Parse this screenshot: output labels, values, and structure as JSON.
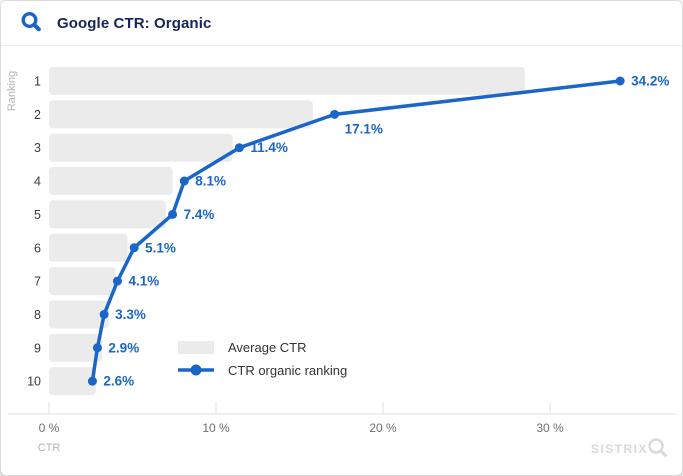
{
  "header": {
    "title": "Google CTR: Organic"
  },
  "colors": {
    "accent_blue": "#1a66c8",
    "title_navy": "#16255b",
    "bar_gray": "#ebebeb",
    "axis_line": "#e2e2e2",
    "tick_text": "#6f6f6f",
    "muted_text": "#b4b4b4",
    "row_label_text": "#3d3d3d",
    "legend_text": "#333333",
    "watermark_gray": "#d9d9d9"
  },
  "chart_data": {
    "type": "bar",
    "subtype": "horizontal-bars-with-line-overlay",
    "title": "Google CTR: Organic",
    "xlabel": "CTR",
    "ylabel": "Ranking",
    "categories": [
      "1",
      "2",
      "3",
      "4",
      "5",
      "6",
      "7",
      "8",
      "9",
      "10"
    ],
    "series": [
      {
        "name": "Average CTR",
        "type": "bar",
        "values": [
          28.5,
          15.8,
          11.0,
          7.4,
          7.0,
          4.7,
          4.0,
          3.6,
          3.2,
          2.8
        ]
      },
      {
        "name": "CTR organic ranking",
        "type": "line",
        "values": [
          34.2,
          17.1,
          11.4,
          8.1,
          7.4,
          5.1,
          4.1,
          3.3,
          2.9,
          2.6
        ],
        "point_labels": [
          "34.2%",
          "17.1%",
          "11.4%",
          "8.1%",
          "7.4%",
          "5.1%",
          "4.1%",
          "3.3%",
          "2.9%",
          "2.6%"
        ]
      }
    ],
    "x_ticks": [
      "0 %",
      "10 %",
      "20 %",
      "30 %"
    ],
    "x_tick_values": [
      0,
      10,
      20,
      30
    ],
    "xlim": [
      0,
      37.5
    ],
    "grid": false,
    "legend_position": "inside-bottom-left"
  },
  "watermark": {
    "text": "SISTRIX"
  }
}
